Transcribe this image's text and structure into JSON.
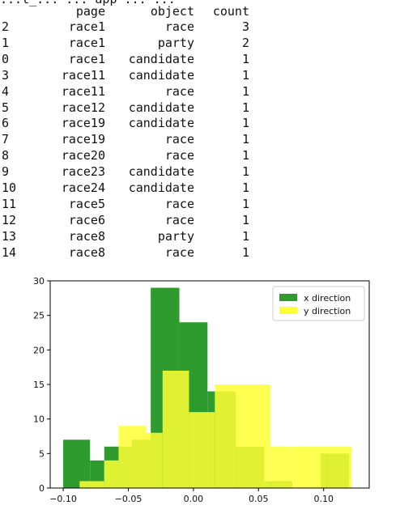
{
  "top_cut_text": "...t_... ... app ... ...",
  "table": {
    "columns": [
      "",
      "page",
      "object",
      "count"
    ],
    "rows": [
      [
        "2",
        "race1",
        "race",
        "3"
      ],
      [
        "1",
        "race1",
        "party",
        "2"
      ],
      [
        "0",
        "race1",
        "candidate",
        "1"
      ],
      [
        "3",
        "race11",
        "candidate",
        "1"
      ],
      [
        "4",
        "race11",
        "race",
        "1"
      ],
      [
        "5",
        "race12",
        "candidate",
        "1"
      ],
      [
        "6",
        "race19",
        "candidate",
        "1"
      ],
      [
        "7",
        "race19",
        "race",
        "1"
      ],
      [
        "8",
        "race20",
        "race",
        "1"
      ],
      [
        "9",
        "race23",
        "candidate",
        "1"
      ],
      [
        "10",
        "race24",
        "candidate",
        "1"
      ],
      [
        "11",
        "race5",
        "race",
        "1"
      ],
      [
        "12",
        "race6",
        "race",
        "1"
      ],
      [
        "13",
        "race8",
        "party",
        "1"
      ],
      [
        "14",
        "race8",
        "race",
        "1"
      ]
    ]
  },
  "chart_data": {
    "type": "histogram",
    "xlim": [
      -0.11,
      0.135
    ],
    "ylim": [
      0,
      30
    ],
    "xticks": [
      -0.1,
      -0.05,
      0.0,
      0.05,
      0.1
    ],
    "xtick_labels": [
      "−0.10",
      "−0.05",
      "0.00",
      "0.05",
      "0.10"
    ],
    "yticks": [
      0,
      5,
      10,
      15,
      20,
      25,
      30
    ],
    "grid": false,
    "legend_position": "top-right",
    "series": [
      {
        "name": "x direction",
        "color": "#2e9b2e",
        "bins": [
          {
            "x0": -0.1,
            "x1": -0.0794,
            "count": 7
          },
          {
            "x0": -0.0794,
            "x1": -0.0685,
            "count": 4
          },
          {
            "x0": -0.0685,
            "x1": -0.0473,
            "count": 6
          },
          {
            "x0": -0.0473,
            "x1": -0.0328,
            "count": 7
          },
          {
            "x0": -0.0328,
            "x1": -0.0108,
            "count": 29
          },
          {
            "x0": -0.0108,
            "x1": 0.0108,
            "count": 24
          },
          {
            "x0": 0.0108,
            "x1": 0.0325,
            "count": 14
          },
          {
            "x0": 0.0325,
            "x1": 0.0544,
            "count": 6
          },
          {
            "x0": 0.0544,
            "x1": 0.0758,
            "count": 1
          },
          {
            "x0": 0.0758,
            "x1": 0.0977,
            "count": 0
          },
          {
            "x0": 0.0977,
            "x1": 0.1195,
            "count": 5
          }
        ]
      },
      {
        "name": "y direction",
        "color": "#ffff33",
        "bins": [
          {
            "x0": -0.0874,
            "x1": -0.0685,
            "count": 1
          },
          {
            "x0": -0.0685,
            "x1": -0.0575,
            "count": 4
          },
          {
            "x0": -0.0575,
            "x1": -0.0363,
            "count": 9
          },
          {
            "x0": -0.0363,
            "x1": -0.0237,
            "count": 8
          },
          {
            "x0": -0.0237,
            "x1": -0.0034,
            "count": 17
          },
          {
            "x0": -0.0034,
            "x1": 0.0164,
            "count": 11
          },
          {
            "x0": 0.0164,
            "x1": 0.0325,
            "count": 15
          },
          {
            "x0": 0.0325,
            "x1": 0.0593,
            "count": 15
          },
          {
            "x0": 0.0593,
            "x1": 0.0758,
            "count": 6
          },
          {
            "x0": 0.0758,
            "x1": 0.1026,
            "count": 6
          },
          {
            "x0": 0.1026,
            "x1": 0.1215,
            "count": 6
          }
        ]
      }
    ]
  }
}
